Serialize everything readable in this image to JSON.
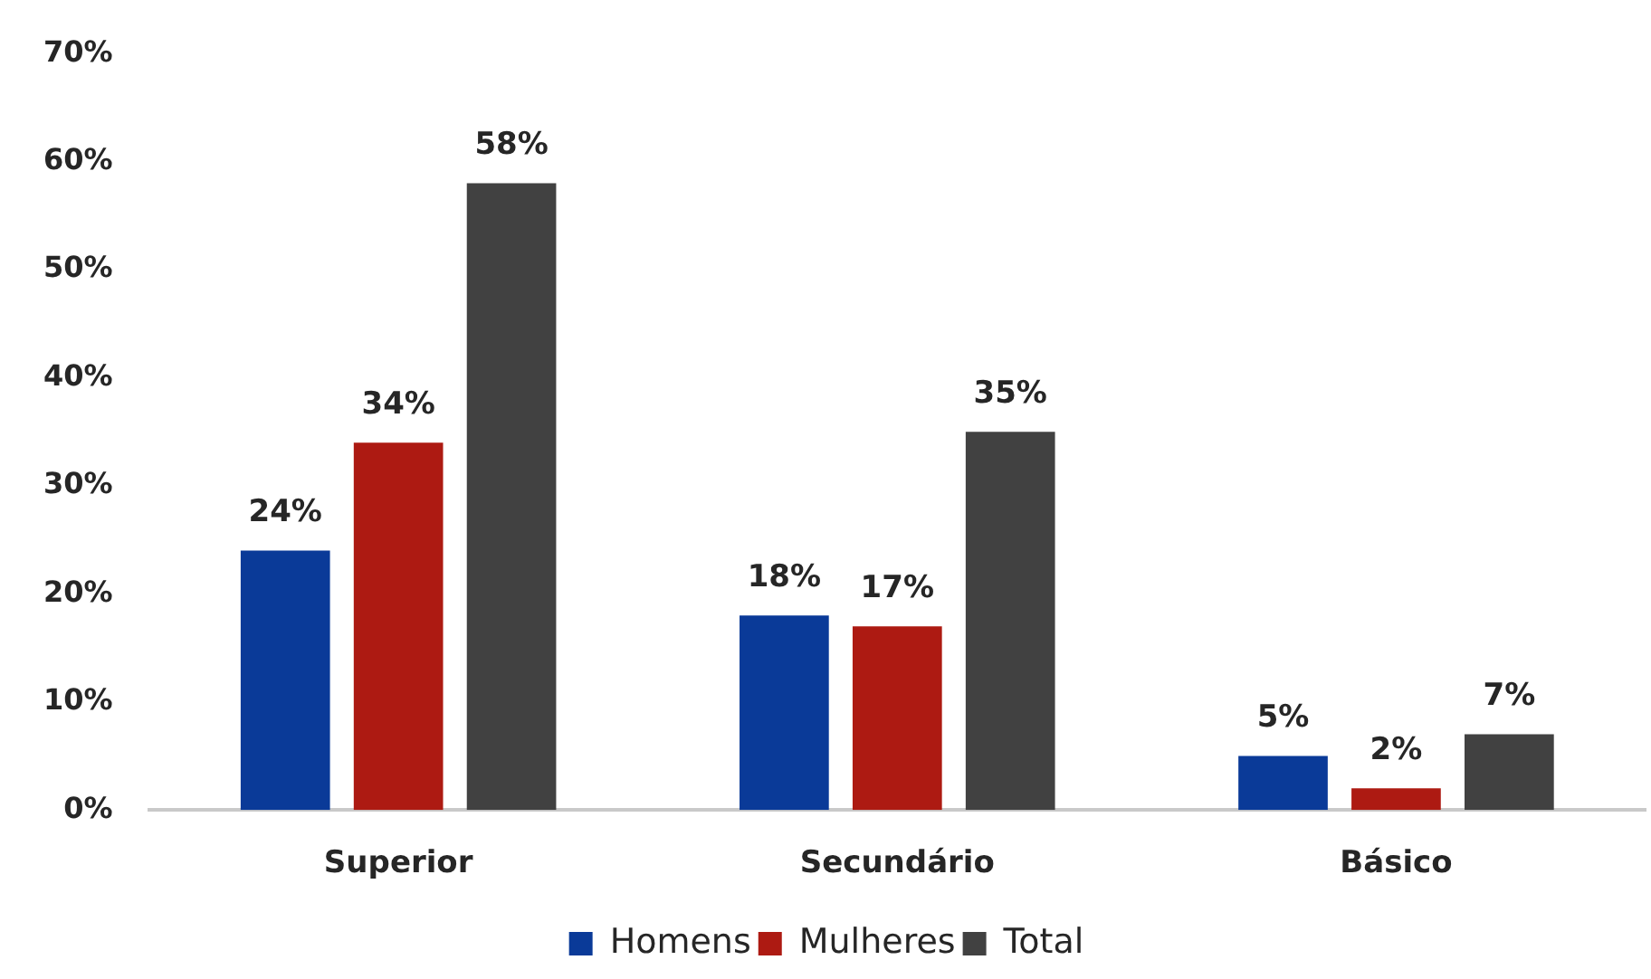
{
  "chart_data": {
    "type": "bar",
    "categories": [
      "Superior",
      "Secundário",
      "Básico"
    ],
    "series": [
      {
        "name": "Homens",
        "color": "#0a3a98",
        "values": [
          24,
          18,
          5
        ],
        "value_labels": [
          "24%",
          "18%",
          "5%"
        ]
      },
      {
        "name": "Mulheres",
        "color": "#ad1a12",
        "values": [
          34,
          17,
          2
        ],
        "value_labels": [
          "34%",
          "17%",
          "2%"
        ]
      },
      {
        "name": "Total",
        "color": "#414141",
        "values": [
          58,
          35,
          7
        ],
        "value_labels": [
          "58%",
          "35%",
          "7%"
        ]
      }
    ],
    "ylim": [
      0,
      70
    ],
    "yticks": [
      {
        "value": 0,
        "label": "0%"
      },
      {
        "value": 10,
        "label": "10%"
      },
      {
        "value": 20,
        "label": "20%"
      },
      {
        "value": 30,
        "label": "30%"
      },
      {
        "value": 40,
        "label": "40%"
      },
      {
        "value": 50,
        "label": "50%"
      },
      {
        "value": 60,
        "label": "60%"
      },
      {
        "value": 70,
        "label": "70%"
      }
    ],
    "grid": false,
    "legend": "bottom"
  }
}
